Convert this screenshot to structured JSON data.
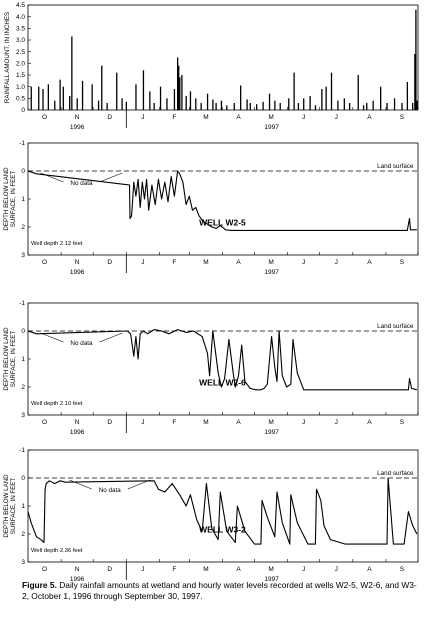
{
  "chart_data": [
    {
      "type": "bar",
      "ylabel": "RAINFALL AMOUNT, IN INCHES",
      "ylim": [
        0,
        4.5
      ],
      "yticks": [
        "0",
        "0.5",
        "1.0",
        "1.5",
        "2.0",
        "2.5",
        "3.0",
        "3.5",
        "4.0",
        "4.5"
      ],
      "month_labels": [
        "O",
        "N",
        "D",
        "J",
        "F",
        "M",
        "A",
        "M",
        "J",
        "J",
        "A",
        "S"
      ],
      "year_labels": [
        "1996",
        "1997"
      ],
      "x_unit": "day of water year (1 = October 1, 1996)",
      "days": [
        3,
        10,
        14,
        19,
        25,
        30,
        33,
        39,
        41,
        46,
        51,
        60,
        66,
        69,
        74,
        83,
        88,
        92,
        101,
        108,
        114,
        118,
        124,
        130,
        137,
        140,
        141,
        142,
        144,
        148,
        152,
        157,
        162,
        168,
        173,
        176,
        181,
        186,
        193,
        199,
        205,
        208,
        214,
        220,
        226,
        231,
        236,
        244,
        249,
        253,
        258,
        264,
        269,
        275,
        279,
        284,
        290,
        296,
        301,
        309,
        314,
        317,
        323,
        330,
        336,
        343,
        350,
        355,
        360,
        362,
        363,
        364
      ],
      "values": [
        1.0,
        1.0,
        0.9,
        1.1,
        0.4,
        1.3,
        1.0,
        0.6,
        3.15,
        0.5,
        1.25,
        1.1,
        0.4,
        1.9,
        0.3,
        1.6,
        0.5,
        0.35,
        1.1,
        1.7,
        0.8,
        0.3,
        1.0,
        0.5,
        0.9,
        2.25,
        1.9,
        1.4,
        1.5,
        0.6,
        0.8,
        0.5,
        0.3,
        0.7,
        0.45,
        0.3,
        0.4,
        0.2,
        0.3,
        1.05,
        0.45,
        0.3,
        0.25,
        0.35,
        0.7,
        0.4,
        0.3,
        0.5,
        1.6,
        0.3,
        0.5,
        0.6,
        0.2,
        0.9,
        1.0,
        1.6,
        0.4,
        0.5,
        0.3,
        1.5,
        0.2,
        0.3,
        0.4,
        1.0,
        0.3,
        0.5,
        0.3,
        1.2,
        0.3,
        2.4,
        4.3,
        0.4
      ]
    },
    {
      "type": "line",
      "panel_label": "WELL W2-5",
      "ylabel": "DEPTH BELOW LAND SURFACE, IN FEET",
      "ylim": [
        -1,
        3
      ],
      "yticks": [
        "-1",
        "0",
        "1",
        "2",
        "3"
      ],
      "month_labels": [
        "O",
        "N",
        "D",
        "J",
        "F",
        "M",
        "A",
        "M",
        "J",
        "J",
        "A",
        "S"
      ],
      "year_labels": [
        "1996",
        "1997"
      ],
      "land_surface_label": "Land surface",
      "no_data_label": "No data",
      "well_depth_label": "Well depth 2.12 feet",
      "land_surface_depth": 0,
      "no_data_days": [
        8,
        92
      ],
      "x": [
        0,
        8,
        95,
        95.5,
        97,
        99,
        101,
        103,
        105,
        107,
        109,
        111,
        113,
        116,
        119,
        122,
        125,
        128,
        131,
        134,
        137,
        140,
        142,
        145,
        148,
        151,
        154,
        157,
        160,
        164,
        168,
        172,
        176,
        180,
        185,
        190,
        195,
        200,
        210,
        250,
        300,
        355,
        357,
        358,
        364
      ],
      "y": [
        0.0,
        0.1,
        0.5,
        1.7,
        1.6,
        0.4,
        0.9,
        0.3,
        1.3,
        0.4,
        1.0,
        0.3,
        1.4,
        0.5,
        1.2,
        0.3,
        1.0,
        0.4,
        1.1,
        0.2,
        0.9,
        0.0,
        0.1,
        0.4,
        1.2,
        0.9,
        1.4,
        1.3,
        1.6,
        1.8,
        1.9,
        2.0,
        2.05,
        1.95,
        2.1,
        2.12,
        2.12,
        2.12,
        2.12,
        2.12,
        2.12,
        2.12,
        1.7,
        2.1,
        2.1
      ]
    },
    {
      "type": "line",
      "panel_label": "WELL W2-6",
      "ylabel": "DEPTH BELOW LAND SURFACE, IN FEET",
      "ylim": [
        -1,
        3
      ],
      "yticks": [
        "-1",
        "0",
        "1",
        "2",
        "3"
      ],
      "month_labels": [
        "O",
        "N",
        "D",
        "J",
        "F",
        "M",
        "A",
        "M",
        "J",
        "J",
        "A",
        "S"
      ],
      "year_labels": [
        "1996",
        "1997"
      ],
      "land_surface_label": "Land surface",
      "no_data_label": "No data",
      "well_depth_label": "Well depth 2.10 feet",
      "land_surface_depth": 0,
      "no_data_days": [
        8,
        92
      ],
      "x": [
        0,
        8,
        93,
        96,
        99,
        101,
        103,
        105,
        108,
        112,
        118,
        125,
        132,
        140,
        148,
        155,
        163,
        168,
        170,
        173,
        178,
        181,
        184,
        188,
        192,
        194,
        197,
        200,
        203,
        208,
        213,
        218,
        221,
        224,
        228,
        231,
        233,
        235,
        238,
        242,
        246,
        248,
        252,
        258,
        300,
        356,
        357,
        359,
        364
      ],
      "y": [
        0.0,
        0.1,
        0.0,
        0.1,
        0.9,
        0.2,
        1.0,
        0.1,
        0.0,
        0.1,
        -0.05,
        0.0,
        0.1,
        -0.05,
        0.05,
        0.0,
        0.2,
        0.8,
        1.6,
        0.0,
        1.5,
        2.0,
        1.7,
        0.3,
        1.5,
        2.0,
        1.6,
        0.5,
        1.8,
        2.05,
        2.1,
        2.1,
        2.05,
        1.9,
        0.2,
        1.3,
        1.8,
        0.0,
        1.6,
        2.0,
        1.9,
        0.3,
        1.5,
        2.1,
        2.1,
        2.1,
        1.7,
        2.05,
        2.1
      ]
    },
    {
      "type": "line",
      "panel_label": "WELL W3-2",
      "ylabel": "DEPTH BELOW LAND SURFACE, IN FEET",
      "ylim": [
        -1,
        3
      ],
      "yticks": [
        "-1",
        "0",
        "1",
        "2",
        "3"
      ],
      "month_labels": [
        "O",
        "N",
        "D",
        "J",
        "F",
        "M",
        "A",
        "M",
        "J",
        "J",
        "A",
        "S"
      ],
      "year_labels": [
        "1996",
        "1997"
      ],
      "land_surface_label": "Land surface",
      "no_data_label": "No data",
      "well_depth_label": "Well depth 2.36 feet",
      "land_surface_depth": 0,
      "no_data_days": [
        35,
        118
      ],
      "x": [
        0,
        3,
        5,
        8,
        12,
        15,
        16,
        17,
        20,
        25,
        30,
        35,
        118,
        122,
        128,
        135,
        142,
        148,
        152,
        158,
        163,
        167,
        172,
        178,
        180,
        186,
        194,
        196,
        203,
        212,
        218,
        219,
        224,
        231,
        233,
        238,
        245,
        246,
        252,
        262,
        269,
        270,
        274,
        277,
        283,
        297,
        300,
        306,
        312,
        318,
        331,
        336,
        337,
        342,
        352,
        356,
        360,
        364
      ],
      "y": [
        1.2,
        1.6,
        1.8,
        2.1,
        2.2,
        2.3,
        0.4,
        0.2,
        0.1,
        0.2,
        0.1,
        0.15,
        0.1,
        0.4,
        0.5,
        0.2,
        0.6,
        1.0,
        0.6,
        1.5,
        1.9,
        0.2,
        1.8,
        2.2,
        0.5,
        1.9,
        2.3,
        1.0,
        1.9,
        2.36,
        2.36,
        0.8,
        1.4,
        2.1,
        0.5,
        1.6,
        2.36,
        0.6,
        1.6,
        2.36,
        2.36,
        0.4,
        0.8,
        1.7,
        2.2,
        2.36,
        2.36,
        2.36,
        2.36,
        2.36,
        2.36,
        2.36,
        0.0,
        2.36,
        2.36,
        1.2,
        1.7,
        2.0
      ]
    }
  ],
  "caption": {
    "figure_label": "Figure 5.",
    "text": " Daily rainfall amounts at wetland and hourly water levels recorded at wells W2-5, W2-6, and W3-2, October 1, 1996 through September 30, 1997."
  }
}
